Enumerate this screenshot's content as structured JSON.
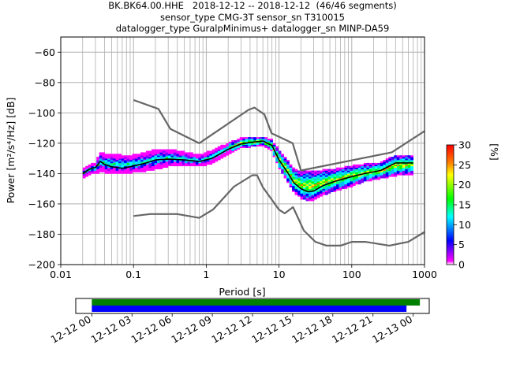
{
  "title_lines": [
    "BK.BK64.00.HHE   2018-12-12 -- 2018-12-12  (46/46 segments)",
    "sensor_type CMG-3T sensor_sn T310015",
    "datalogger_type GuralpMinimus+ datalogger_sn MINP-DA59"
  ],
  "colors": {
    "noise_model": "#666666",
    "mean": "#000000",
    "grid": "#b0b0b0",
    "coverage_top": "#008000",
    "coverage_bottom": "#0000ff"
  },
  "chart_data": [
    {
      "type": "heatmap",
      "xlabel": "Period [s]",
      "ylabel": "Power [m²/s⁴/Hz] [dB]",
      "xscale": "log",
      "xlim": [
        0.01,
        1000
      ],
      "ylim": [
        -200,
        -50
      ],
      "x_ticks": [
        0.01,
        0.1,
        1,
        10,
        100,
        1000
      ],
      "x_tick_labels": [
        "0.01",
        "0.1",
        "1",
        "10",
        "100",
        "1000"
      ],
      "y_ticks": [
        -200,
        -180,
        -160,
        -140,
        -120,
        -100,
        -80,
        -60
      ],
      "y_tick_labels": [
        "−200",
        "−180",
        "−160",
        "−140",
        "−120",
        "−100",
        "−80",
        "−60"
      ],
      "grid": true,
      "colorbar": {
        "label": "[%]",
        "range": [
          0,
          30
        ],
        "ticks": [
          0,
          5,
          10,
          15,
          20,
          25,
          30
        ],
        "colormap": "pqlx"
      },
      "series": [
        {
          "role": "new-high-noise-model",
          "x": [
            0.1,
            0.22,
            0.32,
            0.8,
            3.8,
            4.6,
            6.3,
            7.9,
            15.4,
            20,
            354.8,
            1000
          ],
          "y": [
            -91.5,
            -97.4,
            -110.5,
            -120,
            -98,
            -96.5,
            -101,
            -113.5,
            -120,
            -138,
            -126,
            -112
          ]
        },
        {
          "role": "new-low-noise-model",
          "x": [
            0.1,
            0.17,
            0.4,
            0.8,
            1.24,
            2.4,
            4.3,
            5,
            6,
            10,
            12,
            15.6,
            21.9,
            31.6,
            45,
            70,
            101,
            154,
            328,
            600,
            1000
          ],
          "y": [
            -168,
            -166.7,
            -166.7,
            -169.2,
            -163.7,
            -148.6,
            -141.1,
            -141.1,
            -149,
            -163.8,
            -166.2,
            -162.1,
            -177.5,
            -185,
            -187.5,
            -187.5,
            -185,
            -185,
            -187.5,
            -185,
            -178.5
          ]
        },
        {
          "role": "mean",
          "x": [
            0.02,
            0.025,
            0.03,
            0.035,
            0.04,
            0.05,
            0.07,
            0.1,
            0.15,
            0.2,
            0.3,
            0.5,
            0.8,
            1.2,
            2,
            3,
            4,
            5,
            6,
            8,
            10,
            13,
            16,
            20,
            25,
            30,
            40,
            60,
            100,
            150,
            250,
            400,
            700
          ],
          "y": [
            -140,
            -137,
            -136,
            -132,
            -134,
            -135.5,
            -136.5,
            -135,
            -133,
            -131,
            -130.5,
            -131,
            -132,
            -130,
            -124,
            -120.5,
            -119.5,
            -119,
            -118.5,
            -121.5,
            -131,
            -139,
            -146,
            -150,
            -152,
            -151.5,
            -148,
            -145,
            -142,
            -140,
            -138,
            -133,
            -133
          ]
        }
      ],
      "ppsd_density": {
        "x": [
          0.02,
          0.025,
          0.03,
          0.035,
          0.04,
          0.05,
          0.07,
          0.1,
          0.15,
          0.2,
          0.3,
          0.5,
          0.8,
          1.2,
          2,
          3,
          4,
          5,
          6,
          8,
          10,
          13,
          16,
          20,
          25,
          30,
          40,
          60,
          100,
          150,
          250,
          400,
          700
        ],
        "low": [
          -143,
          -140,
          -140,
          -138,
          -139,
          -140,
          -140,
          -139,
          -138,
          -137,
          -135,
          -135,
          -135,
          -133,
          -127,
          -123,
          -122,
          -122,
          -121,
          -125,
          -136,
          -145,
          -152,
          -156,
          -158,
          -157,
          -154,
          -151,
          -148,
          -145,
          -143,
          -141,
          -140
        ],
        "high": [
          -137,
          -134,
          -133,
          -126,
          -127,
          -127,
          -128,
          -128,
          -126,
          -124,
          -124,
          -126,
          -128,
          -125,
          -120,
          -117,
          -116,
          -116,
          -116,
          -118,
          -125,
          -131,
          -137,
          -139,
          -138,
          -139,
          -138,
          -137,
          -135,
          -134,
          -133,
          -128,
          -128
        ]
      }
    },
    {
      "type": "bar",
      "role": "data-coverage",
      "x_tick_labels": [
        "12-12 00",
        "12-12 03",
        "12-12 06",
        "12-12 09",
        "12-12 12",
        "12-12 15",
        "12-12 18",
        "12-12 21",
        "12-13 00"
      ],
      "x_ticks_hours": [
        0,
        3,
        6,
        9,
        12,
        15,
        18,
        21,
        24
      ],
      "xlim_hours": [
        -1.2,
        25.2
      ],
      "bars": [
        {
          "name": "top",
          "start_hour": 0,
          "end_hour": 24.5
        },
        {
          "name": "bottom",
          "start_hour": 0,
          "end_hour": 23.5
        }
      ]
    }
  ]
}
